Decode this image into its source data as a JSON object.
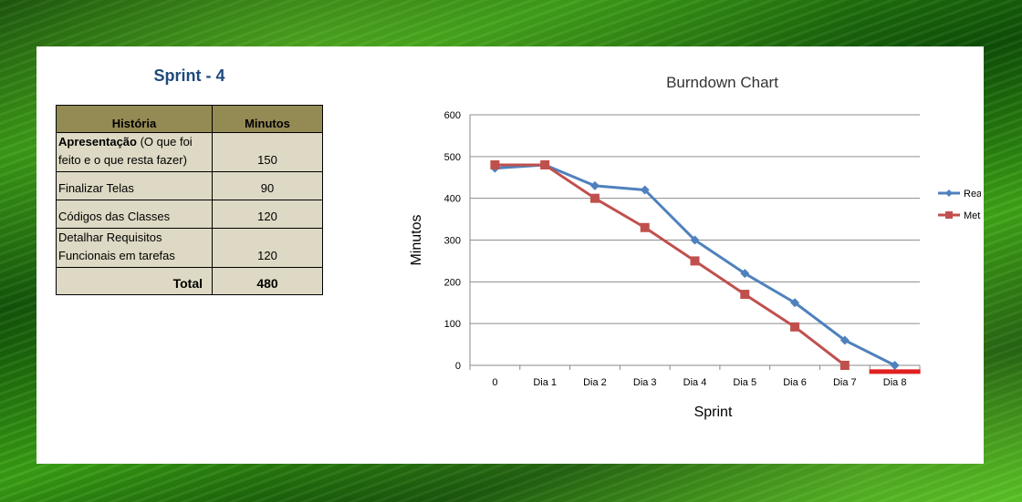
{
  "sprint_title": "Sprint - 4",
  "table": {
    "headers": [
      "História",
      "Minutos"
    ],
    "rows": [
      {
        "bold": "Apresentação",
        "rest": " (O que foi feito e o que resta fazer)",
        "minutes": "150"
      },
      {
        "bold": "",
        "rest": "Finalizar Telas",
        "minutes": "90"
      },
      {
        "bold": "",
        "rest": "Códigos das Classes",
        "minutes": "120"
      },
      {
        "bold": "",
        "rest": "Detalhar Requisitos Funcionais em tarefas",
        "minutes": "120"
      }
    ],
    "total_label": "Total",
    "total_value": "480"
  },
  "chart_data": {
    "type": "line",
    "title": "Burndown Chart",
    "xlabel": "Sprint",
    "ylabel": "Minutos",
    "categories": [
      "0",
      "Dia 1",
      "Dia 2",
      "Dia 3",
      "Dia 4",
      "Dia 5",
      "Dia 6",
      "Dia 7",
      "Dia 8"
    ],
    "ylim": [
      0,
      600
    ],
    "yticks": [
      "0",
      "100",
      "200",
      "300",
      "400",
      "500",
      "600"
    ],
    "grid": true,
    "legend_position": "right",
    "series": [
      {
        "name": "Real",
        "color": "#4f81bd",
        "marker": "diamond",
        "values": [
          472,
          480,
          430,
          420,
          300,
          220,
          150,
          60,
          0
        ]
      },
      {
        "name": "Meta",
        "color": "#c0504d",
        "marker": "square",
        "values": [
          480,
          480,
          400,
          330,
          250,
          170,
          92,
          0,
          null
        ]
      }
    ],
    "annotation": {
      "color": "#e02020",
      "category": "Dia 8",
      "value": -15
    }
  }
}
